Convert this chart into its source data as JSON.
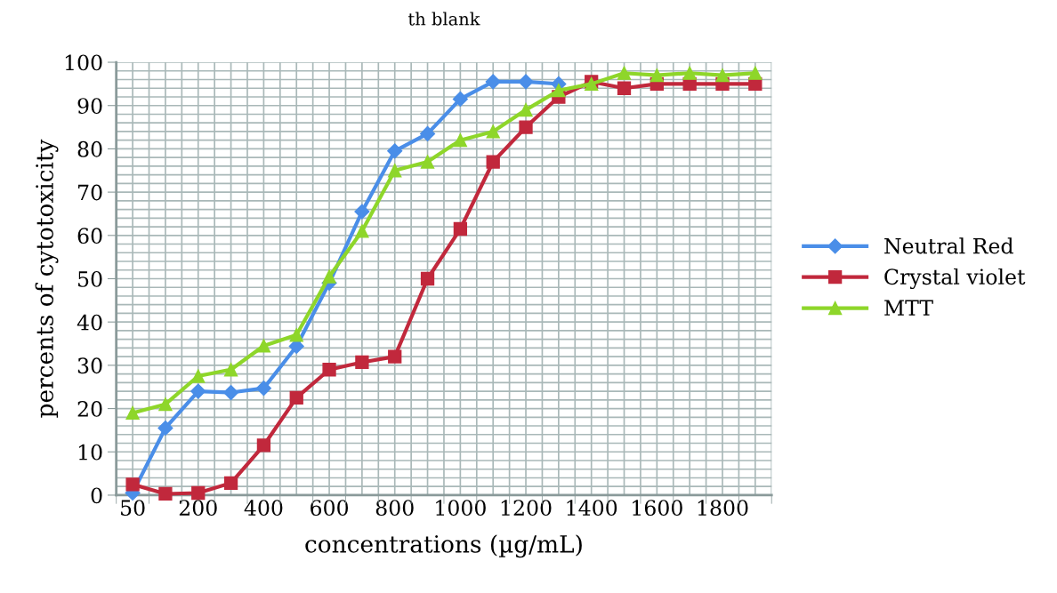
{
  "chart_data": {
    "type": "line",
    "title": "th blank",
    "xlabel": "concentrations (µg/mL)",
    "ylabel": "percents of cytotoxicity",
    "categories": [
      "50",
      null,
      "200",
      null,
      "400",
      null,
      "600",
      null,
      "800",
      null,
      "1000",
      null,
      "1200",
      null,
      "1400",
      null,
      "1600",
      null,
      "1800",
      null
    ],
    "series": [
      {
        "name": "Neutral Red",
        "color": "#4a8ee8",
        "marker": "diamond",
        "values": [
          0.5,
          15.5,
          24,
          23.7,
          24.7,
          34.4,
          49,
          65.5,
          79.5,
          83.5,
          91.5,
          95.5,
          95.5,
          95,
          null,
          null,
          null,
          null,
          null,
          null
        ]
      },
      {
        "name": "Crystal violet",
        "color": "#c1283c",
        "marker": "square",
        "values": [
          2.5,
          0.3,
          0.5,
          2.8,
          11.5,
          22.5,
          29,
          30.7,
          32,
          50,
          61.5,
          77,
          85,
          92,
          95.5,
          94,
          95,
          95,
          95,
          95
        ]
      },
      {
        "name": "MTT",
        "color": "#8ed62a",
        "marker": "triangle",
        "values": [
          19,
          21,
          27.5,
          29,
          34.5,
          37,
          50.5,
          61,
          75,
          77,
          82,
          84,
          89,
          93.5,
          95,
          97.5,
          97,
          97.5,
          97,
          97.5
        ]
      }
    ],
    "ylim": [
      0,
      100
    ],
    "yticks": [
      0,
      10,
      20,
      30,
      40,
      50,
      60,
      70,
      80,
      90,
      100
    ],
    "grid": true,
    "legend": "right",
    "line_style": "solid"
  }
}
